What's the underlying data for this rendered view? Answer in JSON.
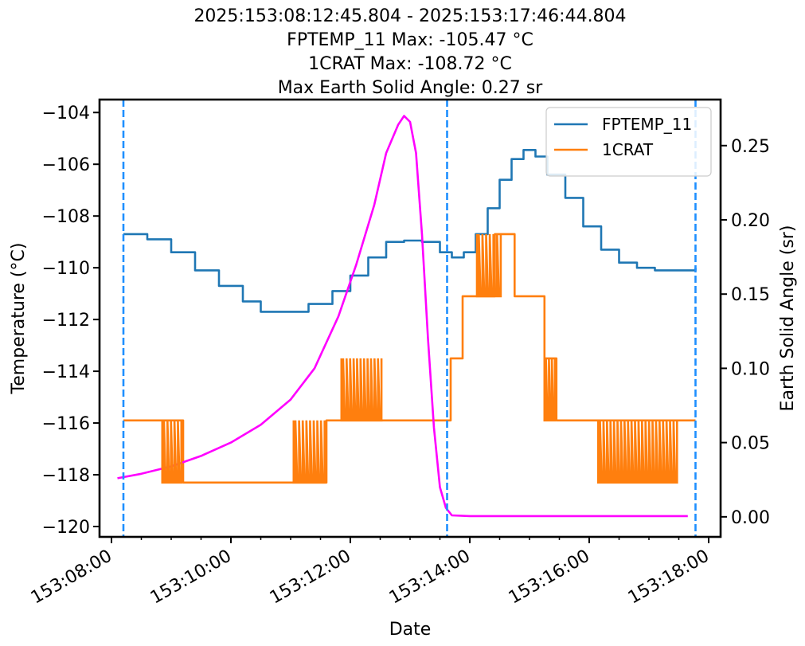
{
  "titles": {
    "line1": "2025:153:08:12:45.804 - 2025:153:17:46:44.804",
    "line2": "FPTEMP_11 Max: -105.47 °C",
    "line3": "1CRAT Max: -108.72 °C",
    "line4": "Max Earth Solid Angle: 0.27 sr"
  },
  "chart_data": {
    "type": "line",
    "xlabel": "Date",
    "ylabel": "Temperature (°C)",
    "y2label": "Earth Solid Angle (sr)",
    "xlim": [
      7.8,
      18.2
    ],
    "ylim": [
      -120.4,
      -103.5
    ],
    "y2lim": [
      -0.0135,
      0.281
    ],
    "x_unit": "hour of day 153",
    "x_ticks": [
      8,
      10,
      12,
      14,
      16,
      18
    ],
    "x_tick_labels": [
      "153:08:00",
      "153:10:00",
      "153:12:00",
      "153:14:00",
      "153:16:00",
      "153:18:00"
    ],
    "y_ticks": [
      -120,
      -118,
      -116,
      -114,
      -112,
      -110,
      -108,
      -106,
      -104
    ],
    "y_tick_labels": [
      "−120",
      "−118",
      "−116",
      "−114",
      "−112",
      "−110",
      "−108",
      "−106",
      "−104"
    ],
    "y2_ticks": [
      0.0,
      0.05,
      0.1,
      0.15,
      0.2,
      0.25
    ],
    "y2_tick_labels": [
      "0.00",
      "0.05",
      "0.10",
      "0.15",
      "0.20",
      "0.25"
    ],
    "grid": false,
    "legend_position": "top-right",
    "vlines": [
      8.2,
      13.62,
      17.78
    ],
    "vline_color": "#1e8fff",
    "series": [
      {
        "name": "FPTEMP_11",
        "axis": "left",
        "color": "#1f77b4",
        "x": [
          8.2,
          8.6,
          9.0,
          9.4,
          9.8,
          10.2,
          10.5,
          10.9,
          11.3,
          11.7,
          12.0,
          12.3,
          12.6,
          12.9,
          13.2,
          13.5,
          13.7,
          13.9,
          14.1,
          14.3,
          14.5,
          14.7,
          14.9,
          15.1,
          15.3,
          15.6,
          15.9,
          16.2,
          16.5,
          16.8,
          17.1,
          17.4,
          17.78
        ],
        "y": [
          -108.7,
          -108.9,
          -109.4,
          -110.1,
          -110.7,
          -111.3,
          -111.7,
          -111.7,
          -111.4,
          -110.9,
          -110.3,
          -109.6,
          -109.0,
          -108.95,
          -109.0,
          -109.4,
          -109.6,
          -109.4,
          -108.7,
          -107.7,
          -106.6,
          -105.8,
          -105.45,
          -105.7,
          -106.4,
          -107.3,
          -108.4,
          -109.3,
          -109.8,
          -110.0,
          -110.1,
          -110.1,
          -110.0
        ]
      },
      {
        "name": "1CRAT",
        "axis": "left",
        "color": "#ff7f0e",
        "x": [
          8.2,
          8.85,
          9.2,
          10.25,
          11.05,
          11.6,
          11.85,
          12.55,
          13.62,
          13.68,
          13.88,
          14.12,
          14.42,
          14.75,
          15.25,
          15.45,
          16.15,
          17.5,
          17.78
        ],
        "y": [
          -115.9,
          -115.9,
          -118.3,
          -118.3,
          -118.3,
          -115.9,
          -115.9,
          -115.9,
          -115.9,
          -113.5,
          -111.1,
          -111.1,
          -108.7,
          -111.1,
          -113.5,
          -115.9,
          -115.9,
          -115.9,
          -115.9
        ]
      },
      {
        "axis": "right",
        "color": "#ff00ff",
        "x": [
          8.1,
          8.5,
          9.0,
          9.5,
          10.0,
          10.5,
          11.0,
          11.4,
          11.8,
          12.1,
          12.4,
          12.6,
          12.8,
          12.9,
          13.0,
          13.1,
          13.2,
          13.3,
          13.4,
          13.5,
          13.6,
          13.7,
          14.0,
          15.0,
          16.0,
          17.0,
          17.65
        ],
        "y": [
          0.026,
          0.029,
          0.034,
          0.041,
          0.05,
          0.062,
          0.079,
          0.1,
          0.135,
          0.17,
          0.21,
          0.245,
          0.264,
          0.27,
          0.266,
          0.245,
          0.19,
          0.12,
          0.06,
          0.02,
          0.006,
          0.001,
          0.0005,
          0.0005,
          0.0005,
          0.0005,
          0.0005
        ]
      }
    ],
    "noisy_segments": [
      {
        "series": "1CRAT",
        "x_start": 8.85,
        "x_end": 9.2,
        "low": -118.3,
        "high": -115.9
      },
      {
        "series": "1CRAT",
        "x_start": 11.05,
        "x_end": 11.6,
        "low": -118.3,
        "high": -115.9
      },
      {
        "series": "1CRAT",
        "x_start": 11.85,
        "x_end": 12.55,
        "low": -115.9,
        "high": -113.5
      },
      {
        "series": "1CRAT",
        "x_start": 14.12,
        "x_end": 14.55,
        "low": -111.1,
        "high": -108.7
      },
      {
        "series": "1CRAT",
        "x_start": 15.25,
        "x_end": 15.45,
        "low": -115.9,
        "high": -113.5
      },
      {
        "series": "1CRAT",
        "x_start": 16.15,
        "x_end": 17.5,
        "low": -118.3,
        "high": -115.9
      }
    ]
  }
}
